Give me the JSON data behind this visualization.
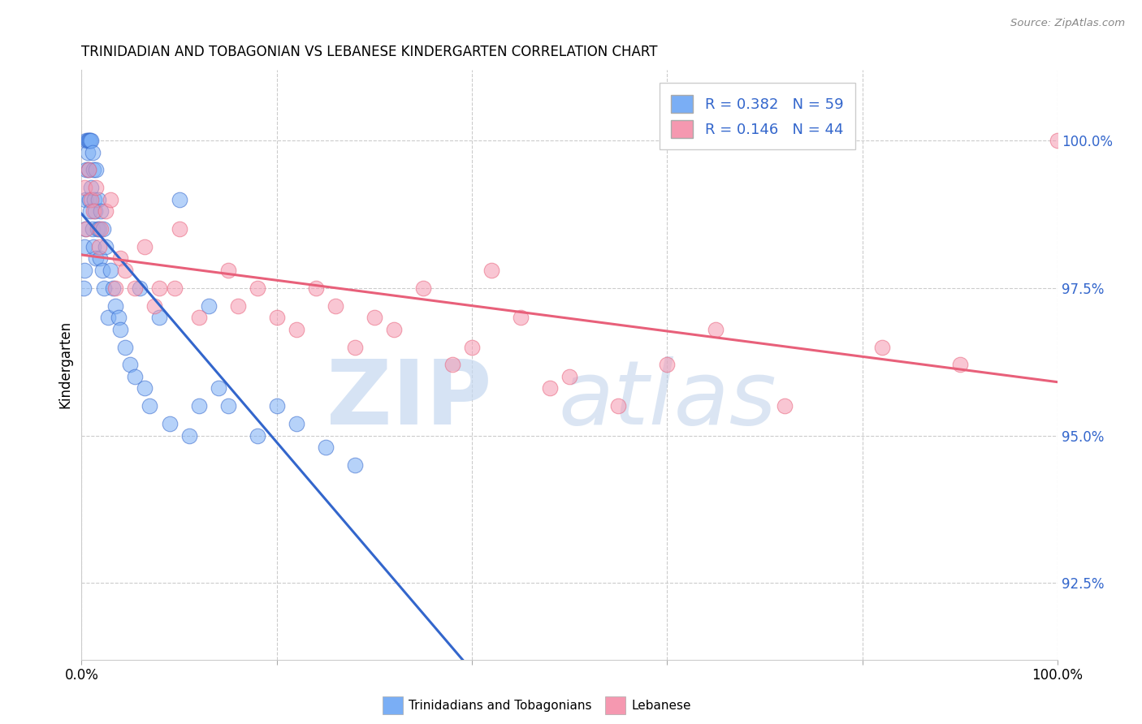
{
  "title": "TRINIDADIAN AND TOBAGONIAN VS LEBANESE KINDERGARTEN CORRELATION CHART",
  "source": "Source: ZipAtlas.com",
  "ylabel": "Kindergarten",
  "y_ticks": [
    92.5,
    95.0,
    97.5,
    100.0
  ],
  "y_tick_labels": [
    "92.5%",
    "95.0%",
    "97.5%",
    "100.0%"
  ],
  "x_range": [
    0.0,
    100.0
  ],
  "y_range": [
    91.2,
    101.2
  ],
  "legend_r_blue": "R = 0.382",
  "legend_n_blue": "N = 59",
  "legend_r_pink": "R = 0.146",
  "legend_n_pink": "N = 44",
  "blue_color": "#7aaef5",
  "pink_color": "#f598b0",
  "blue_line_color": "#3366cc",
  "pink_line_color": "#e8607a",
  "trinidadian_x": [
    0.2,
    0.3,
    0.3,
    0.4,
    0.4,
    0.5,
    0.5,
    0.6,
    0.6,
    0.7,
    0.7,
    0.8,
    0.8,
    0.9,
    0.9,
    1.0,
    1.0,
    1.1,
    1.1,
    1.2,
    1.2,
    1.3,
    1.4,
    1.5,
    1.5,
    1.6,
    1.7,
    1.8,
    1.9,
    2.0,
    2.1,
    2.2,
    2.3,
    2.5,
    2.7,
    3.0,
    3.2,
    3.5,
    3.8,
    4.0,
    4.5,
    5.0,
    5.5,
    6.0,
    6.5,
    7.0,
    8.0,
    9.0,
    10.0,
    11.0,
    12.0,
    13.0,
    14.0,
    15.0,
    18.0,
    20.0,
    22.0,
    25.0,
    28.0
  ],
  "trinidadian_y": [
    97.5,
    98.2,
    97.8,
    99.0,
    98.5,
    100.0,
    99.5,
    100.0,
    99.8,
    100.0,
    99.5,
    100.0,
    99.0,
    100.0,
    98.8,
    100.0,
    99.2,
    99.8,
    98.5,
    99.5,
    98.2,
    99.0,
    98.8,
    99.5,
    98.0,
    98.5,
    99.0,
    98.5,
    98.0,
    98.8,
    97.8,
    98.5,
    97.5,
    98.2,
    97.0,
    97.8,
    97.5,
    97.2,
    97.0,
    96.8,
    96.5,
    96.2,
    96.0,
    97.5,
    95.8,
    95.5,
    97.0,
    95.2,
    99.0,
    95.0,
    95.5,
    97.2,
    95.8,
    95.5,
    95.0,
    95.5,
    95.2,
    94.8,
    94.5
  ],
  "lebanese_x": [
    0.3,
    0.5,
    0.7,
    1.0,
    1.2,
    1.5,
    1.8,
    2.0,
    2.5,
    3.0,
    3.5,
    4.0,
    4.5,
    5.5,
    6.5,
    7.5,
    8.0,
    9.5,
    10.0,
    12.0,
    15.0,
    16.0,
    18.0,
    20.0,
    22.0,
    24.0,
    26.0,
    28.0,
    30.0,
    32.0,
    35.0,
    38.0,
    40.0,
    42.0,
    45.0,
    48.0,
    50.0,
    55.0,
    60.0,
    65.0,
    72.0,
    82.0,
    90.0,
    100.0
  ],
  "lebanese_y": [
    99.2,
    98.5,
    99.5,
    99.0,
    98.8,
    99.2,
    98.2,
    98.5,
    98.8,
    99.0,
    97.5,
    98.0,
    97.8,
    97.5,
    98.2,
    97.2,
    97.5,
    97.5,
    98.5,
    97.0,
    97.8,
    97.2,
    97.5,
    97.0,
    96.8,
    97.5,
    97.2,
    96.5,
    97.0,
    96.8,
    97.5,
    96.2,
    96.5,
    97.8,
    97.0,
    95.8,
    96.0,
    95.5,
    96.2,
    96.8,
    95.5,
    96.5,
    96.2,
    100.0
  ]
}
